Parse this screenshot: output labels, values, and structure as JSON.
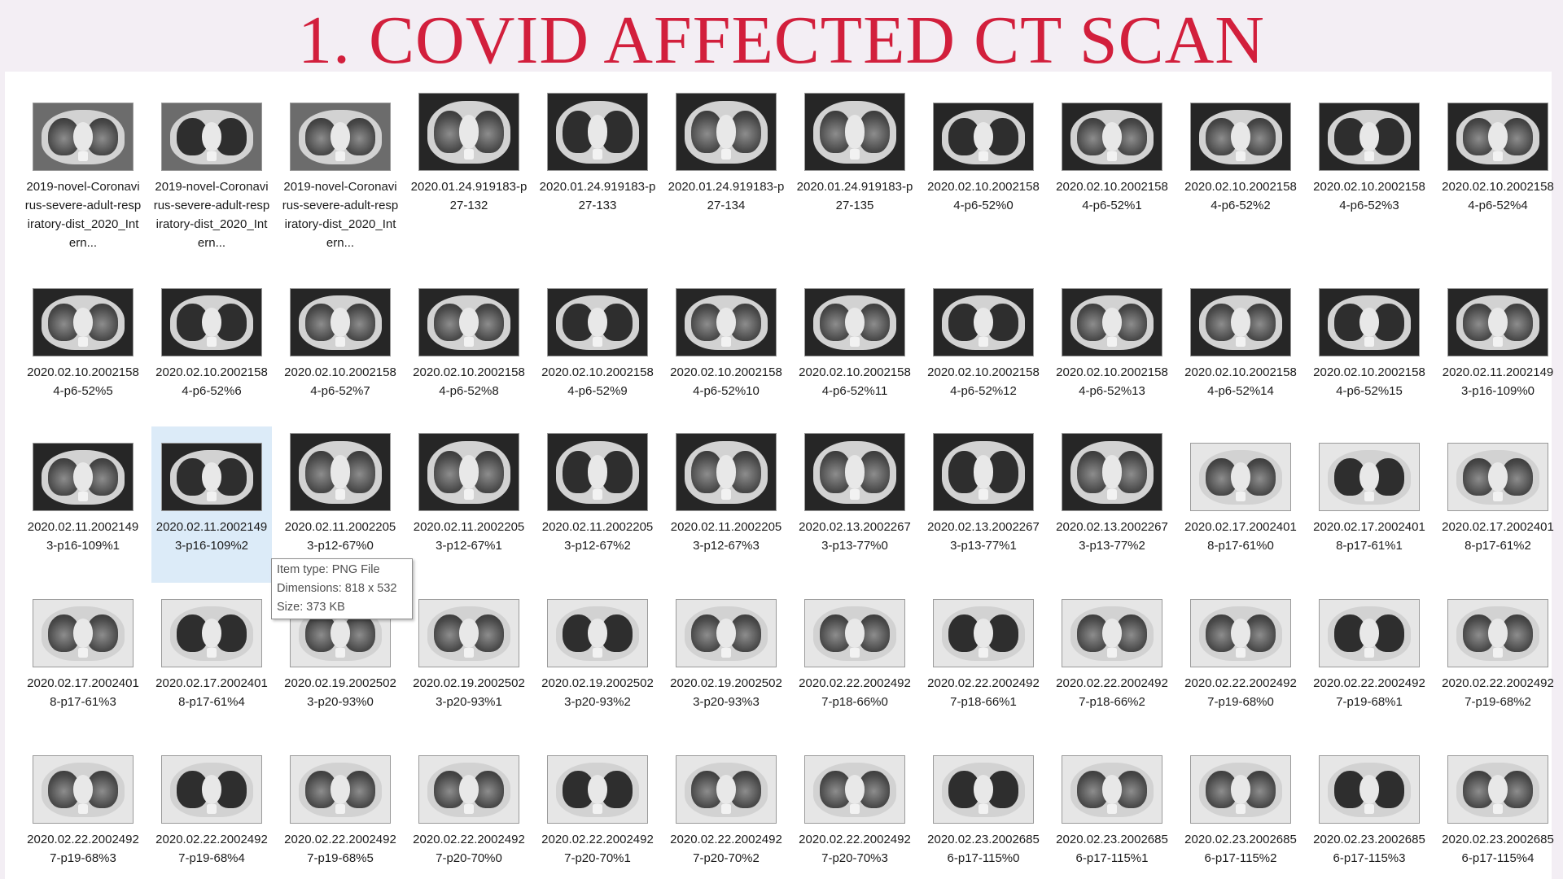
{
  "slide": {
    "title": "1. COVID AFFECTED CT SCAN"
  },
  "tooltip": {
    "type": "Item type: PNG File",
    "dimensions": "Dimensions: 818 x 532",
    "size": "Size: 373 KB"
  },
  "files": [
    {
      "name": "2019-novel-Coronavirus-severe-adult-respiratory-dist_2020_Intern...",
      "style": "light",
      "selected": false
    },
    {
      "name": "2019-novel-Coronavirus-severe-adult-respiratory-dist_2020_Intern...",
      "style": "light",
      "selected": false
    },
    {
      "name": "2019-novel-Coronavirus-severe-adult-respiratory-dist_2020_Intern...",
      "style": "light",
      "selected": false
    },
    {
      "name": "2020.01.24.919183-p27-132",
      "style": "tall",
      "selected": false
    },
    {
      "name": "2020.01.24.919183-p27-133",
      "style": "tall",
      "selected": false
    },
    {
      "name": "2020.01.24.919183-p27-134",
      "style": "tall",
      "selected": false
    },
    {
      "name": "2020.01.24.919183-p27-135",
      "style": "tall",
      "selected": false
    },
    {
      "name": "2020.02.10.20021584-p6-52%0",
      "style": "normal",
      "selected": false
    },
    {
      "name": "2020.02.10.20021584-p6-52%1",
      "style": "normal",
      "selected": false
    },
    {
      "name": "2020.02.10.20021584-p6-52%2",
      "style": "normal",
      "selected": false
    },
    {
      "name": "2020.02.10.20021584-p6-52%3",
      "style": "normal",
      "selected": false
    },
    {
      "name": "2020.02.10.20021584-p6-52%4",
      "style": "normal",
      "selected": false
    },
    {
      "name": "2020.02.10.20021584-p6-52%5",
      "style": "normal",
      "selected": false
    },
    {
      "name": "2020.02.10.20021584-p6-52%6",
      "style": "normal",
      "selected": false
    },
    {
      "name": "2020.02.10.20021584-p6-52%7",
      "style": "normal",
      "selected": false
    },
    {
      "name": "2020.02.10.20021584-p6-52%8",
      "style": "normal",
      "selected": false
    },
    {
      "name": "2020.02.10.20021584-p6-52%9",
      "style": "normal",
      "selected": false
    },
    {
      "name": "2020.02.10.20021584-p6-52%10",
      "style": "normal",
      "selected": false
    },
    {
      "name": "2020.02.10.20021584-p6-52%11",
      "style": "normal",
      "selected": false
    },
    {
      "name": "2020.02.10.20021584-p6-52%12",
      "style": "normal",
      "selected": false
    },
    {
      "name": "2020.02.10.20021584-p6-52%13",
      "style": "normal",
      "selected": false
    },
    {
      "name": "2020.02.10.20021584-p6-52%14",
      "style": "normal",
      "selected": false
    },
    {
      "name": "2020.02.10.20021584-p6-52%15",
      "style": "normal",
      "selected": false
    },
    {
      "name": "2020.02.11.20021493-p16-109%0",
      "style": "normal",
      "selected": false
    },
    {
      "name": "2020.02.11.20021493-p16-109%1",
      "style": "normal",
      "selected": false
    },
    {
      "name": "2020.02.11.20021493-p16-109%2",
      "style": "normal",
      "selected": true
    },
    {
      "name": "2020.02.11.20022053-p12-67%0",
      "style": "tall",
      "selected": false
    },
    {
      "name": "2020.02.11.20022053-p12-67%1",
      "style": "tall",
      "selected": false
    },
    {
      "name": "2020.02.11.20022053-p12-67%2",
      "style": "tall",
      "selected": false
    },
    {
      "name": "2020.02.11.20022053-p12-67%3",
      "style": "tall",
      "selected": false
    },
    {
      "name": "2020.02.13.20022673-p13-77%0",
      "style": "tall",
      "selected": false
    },
    {
      "name": "2020.02.13.20022673-p13-77%1",
      "style": "tall",
      "selected": false
    },
    {
      "name": "2020.02.13.20022673-p13-77%2",
      "style": "tall",
      "selected": false
    },
    {
      "name": "2020.02.17.20024018-p17-61%0",
      "style": "white",
      "selected": false
    },
    {
      "name": "2020.02.17.20024018-p17-61%1",
      "style": "white",
      "selected": false
    },
    {
      "name": "2020.02.17.20024018-p17-61%2",
      "style": "white",
      "selected": false
    },
    {
      "name": "2020.02.17.20024018-p17-61%3",
      "style": "white",
      "selected": false
    },
    {
      "name": "2020.02.17.20024018-p17-61%4",
      "style": "white",
      "selected": false
    },
    {
      "name": "2020.02.19.20025023-p20-93%0",
      "style": "white",
      "selected": false
    },
    {
      "name": "2020.02.19.20025023-p20-93%1",
      "style": "white",
      "selected": false
    },
    {
      "name": "2020.02.19.20025023-p20-93%2",
      "style": "white",
      "selected": false
    },
    {
      "name": "2020.02.19.20025023-p20-93%3",
      "style": "white",
      "selected": false
    },
    {
      "name": "2020.02.22.20024927-p18-66%0",
      "style": "white",
      "selected": false
    },
    {
      "name": "2020.02.22.20024927-p18-66%1",
      "style": "white",
      "selected": false
    },
    {
      "name": "2020.02.22.20024927-p18-66%2",
      "style": "white",
      "selected": false
    },
    {
      "name": "2020.02.22.20024927-p19-68%0",
      "style": "white",
      "selected": false
    },
    {
      "name": "2020.02.22.20024927-p19-68%1",
      "style": "white",
      "selected": false
    },
    {
      "name": "2020.02.22.20024927-p19-68%2",
      "style": "white",
      "selected": false
    },
    {
      "name": "2020.02.22.20024927-p19-68%3",
      "style": "white",
      "selected": false
    },
    {
      "name": "2020.02.22.20024927-p19-68%4",
      "style": "white",
      "selected": false
    },
    {
      "name": "2020.02.22.20024927-p19-68%5",
      "style": "white",
      "selected": false
    },
    {
      "name": "2020.02.22.20024927-p20-70%0",
      "style": "white",
      "selected": false
    },
    {
      "name": "2020.02.22.20024927-p20-70%1",
      "style": "white",
      "selected": false
    },
    {
      "name": "2020.02.22.20024927-p20-70%2",
      "style": "white",
      "selected": false
    },
    {
      "name": "2020.02.22.20024927-p20-70%3",
      "style": "white",
      "selected": false
    },
    {
      "name": "2020.02.23.20026856-p17-115%0",
      "style": "white",
      "selected": false
    },
    {
      "name": "2020.02.23.20026856-p17-115%1",
      "style": "white",
      "selected": false
    },
    {
      "name": "2020.02.23.20026856-p17-115%2",
      "style": "white",
      "selected": false
    },
    {
      "name": "2020.02.23.20026856-p17-115%3",
      "style": "white",
      "selected": false
    },
    {
      "name": "2020.02.23.20026856-p17-115%4",
      "style": "white",
      "selected": false
    }
  ]
}
